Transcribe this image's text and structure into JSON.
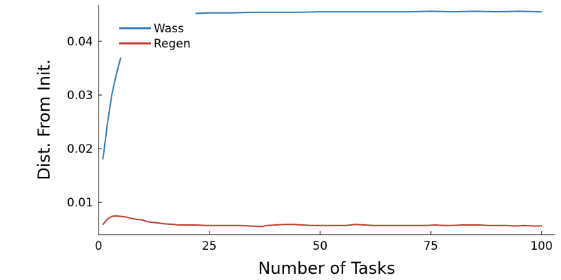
{
  "chart_data": {
    "type": "line",
    "title": "",
    "xlabel": "Number of Tasks",
    "ylabel": "Dist. From Init.",
    "xlim": [
      0,
      103
    ],
    "ylim": [
      0.004,
      0.0468
    ],
    "xticks": [
      0,
      25,
      50,
      75,
      100
    ],
    "yticks": [
      0.01,
      0.02,
      0.03,
      0.04
    ],
    "xtick_labels": [
      "0",
      "25",
      "50",
      "75",
      "100"
    ],
    "ytick_labels": [
      "0.01",
      "0.02",
      "0.03",
      "0.04"
    ],
    "grid": false,
    "legend_position": "top-left",
    "series": [
      {
        "name": "Wass",
        "color": "#2f7ab8",
        "segments": [
          {
            "x": [
              1,
              2,
              3,
              4,
              5
            ],
            "y": [
              0.0181,
              0.0247,
              0.0301,
              0.0338,
              0.0369
            ]
          },
          {
            "x": [
              22,
              25,
              30,
              35,
              40,
              45,
              50,
              55,
              60,
              65,
              70,
              75,
              80,
              85,
              90,
              95,
              100
            ],
            "y": [
              0.0452,
              0.0453,
              0.0453,
              0.0454,
              0.0454,
              0.0454,
              0.0455,
              0.0455,
              0.0455,
              0.0455,
              0.0455,
              0.0456,
              0.0455,
              0.0456,
              0.0455,
              0.0456,
              0.0455
            ]
          }
        ]
      },
      {
        "name": "Regen",
        "color": "#c03a2b",
        "segments": [
          {
            "x": [
              1,
              2,
              3,
              4,
              5,
              6,
              7,
              8,
              9,
              10,
              11,
              12,
              13,
              15,
              17,
              18,
              20,
              22,
              24,
              26,
              28,
              30,
              32,
              34,
              36,
              37,
              38,
              40,
              42,
              44,
              46,
              48,
              50,
              52,
              54,
              56,
              58,
              60,
              62,
              64,
              66,
              68,
              70,
              72,
              74,
              76,
              78,
              80,
              82,
              84,
              86,
              88,
              90,
              92,
              94,
              96,
              98,
              100
            ],
            "y": [
              0.0059,
              0.0069,
              0.0074,
              0.0075,
              0.0074,
              0.0073,
              0.0071,
              0.0069,
              0.0068,
              0.0067,
              0.0064,
              0.0063,
              0.0062,
              0.006,
              0.0059,
              0.0058,
              0.0058,
              0.0058,
              0.0057,
              0.0057,
              0.0057,
              0.0057,
              0.0057,
              0.0056,
              0.0055,
              0.0055,
              0.0057,
              0.0058,
              0.0059,
              0.0059,
              0.0058,
              0.0057,
              0.0057,
              0.0057,
              0.0057,
              0.0057,
              0.0059,
              0.0058,
              0.0057,
              0.0057,
              0.0057,
              0.0057,
              0.0057,
              0.0057,
              0.0057,
              0.0058,
              0.0057,
              0.0057,
              0.0058,
              0.0058,
              0.0058,
              0.0057,
              0.0057,
              0.0057,
              0.0056,
              0.0057,
              0.0056,
              0.0056
            ]
          }
        ]
      }
    ]
  }
}
